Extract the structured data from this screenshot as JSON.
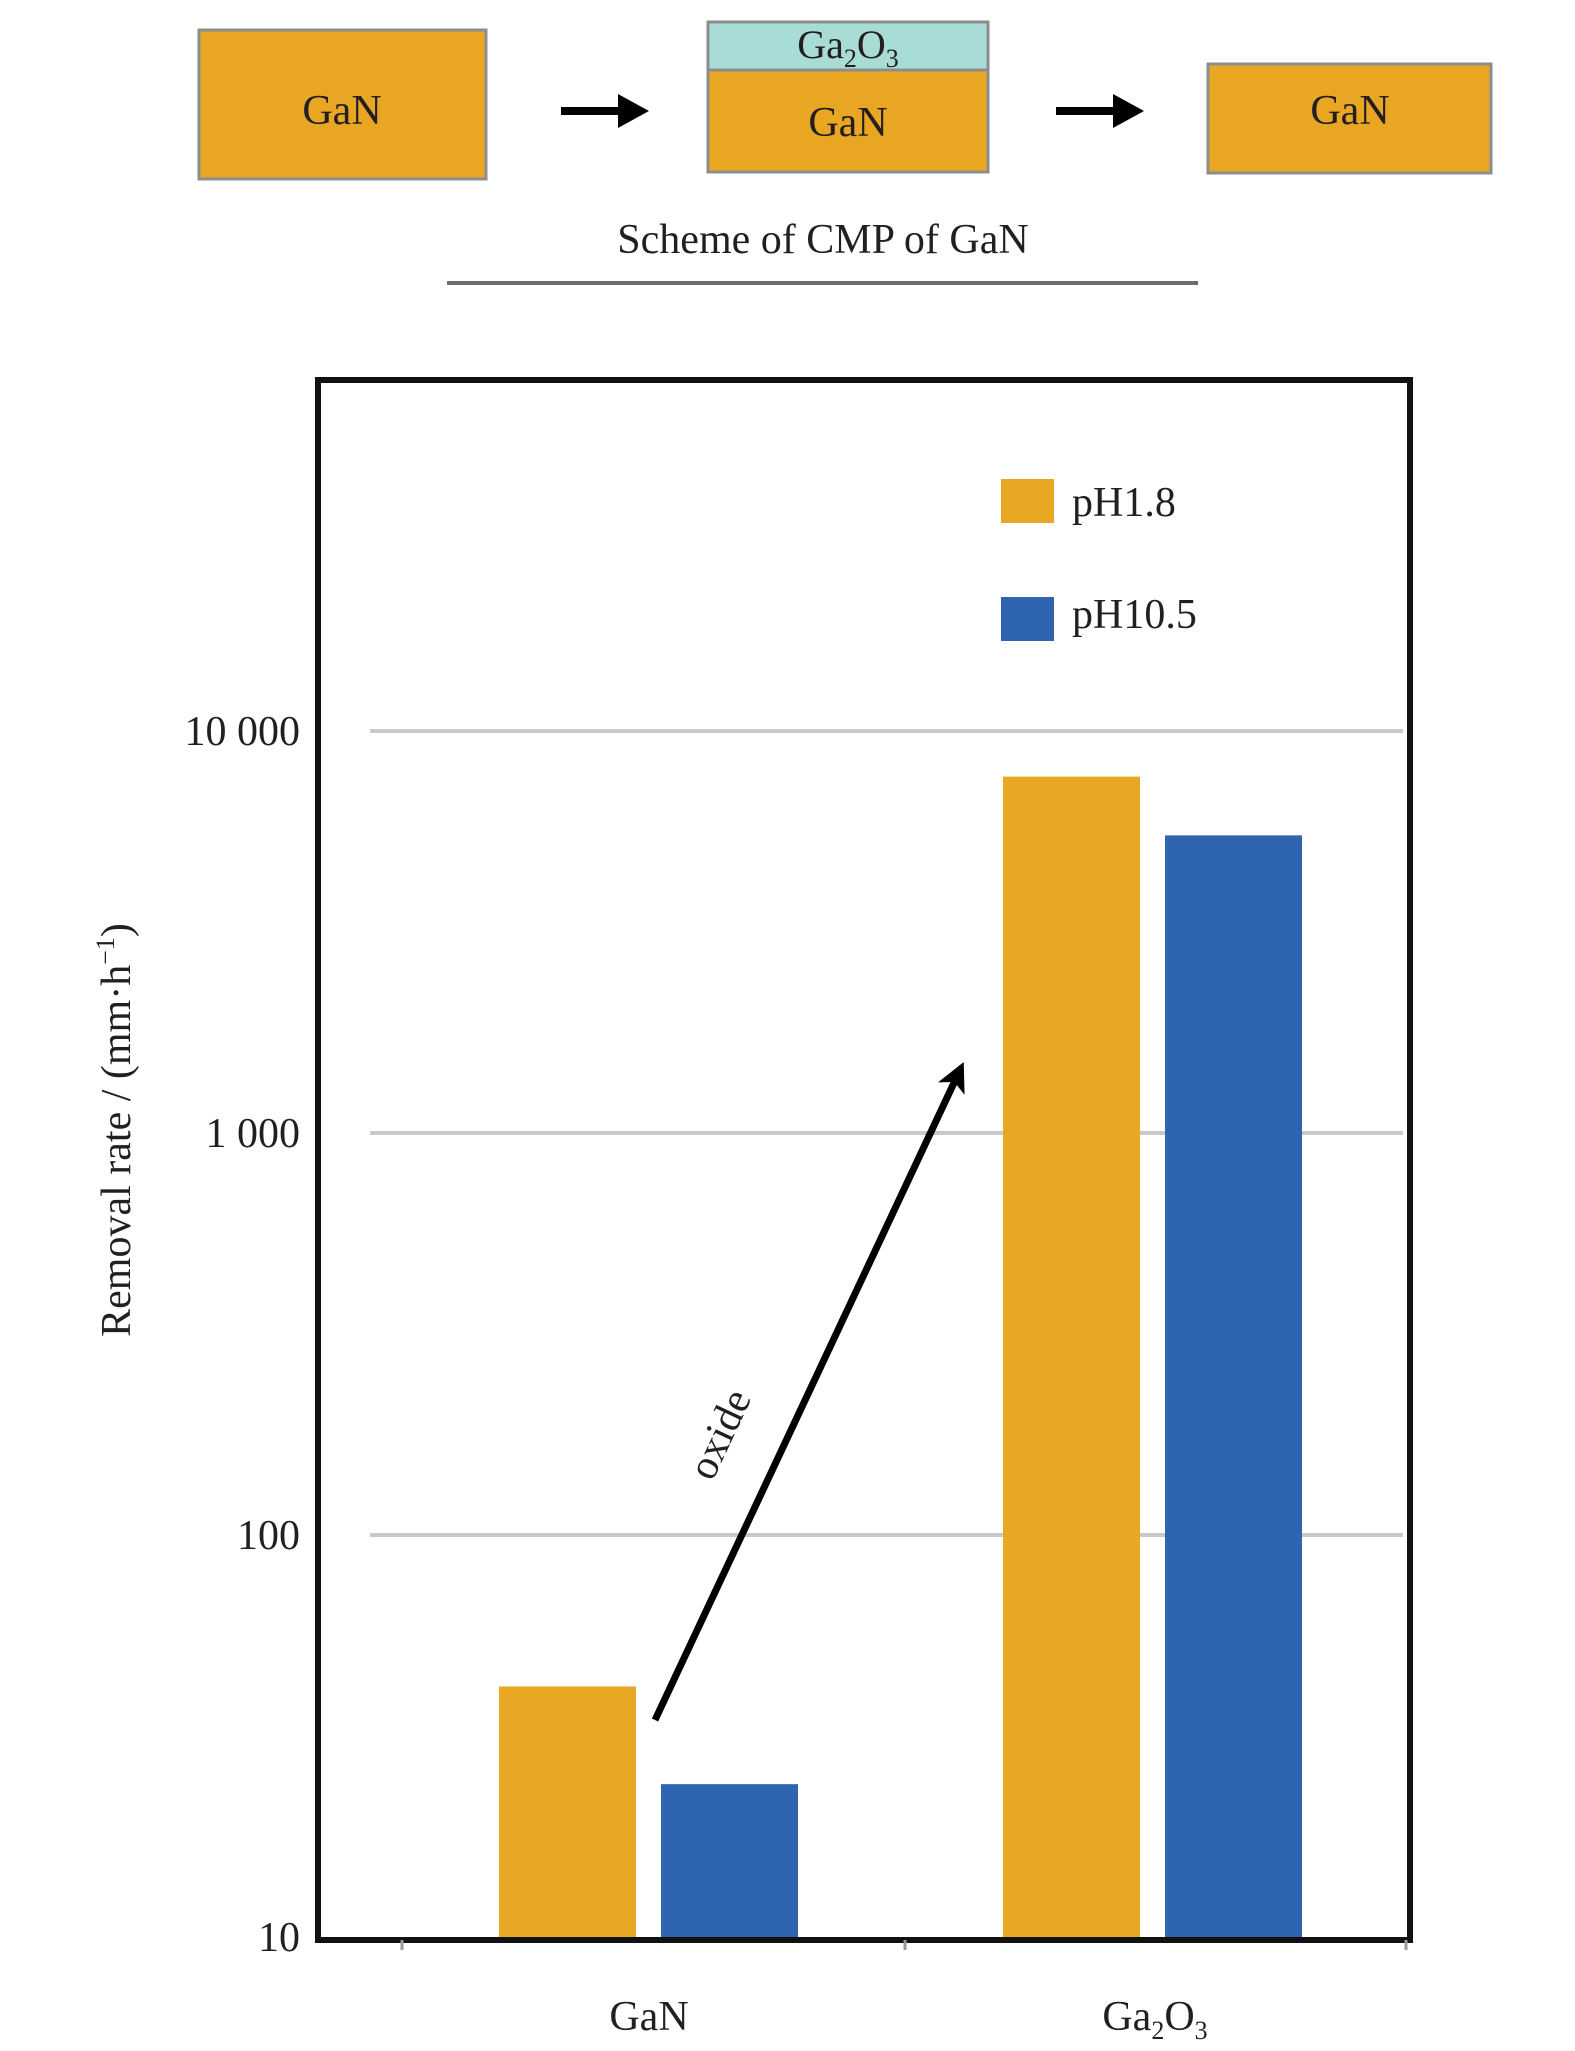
{
  "scheme": {
    "caption": "Scheme of CMP of GaN",
    "blocks": [
      {
        "label": "GaN"
      },
      {
        "label": "GaN",
        "oxide_layer": {
          "base": "Ga",
          "sub1": "2",
          "mid": "O",
          "sub2": "3"
        }
      },
      {
        "label": "GaN"
      }
    ],
    "colors": {
      "gan": "#e8a623",
      "oxide": "#a8dcd6",
      "arrow": "#000000"
    }
  },
  "chart_data": {
    "type": "bar",
    "categories": [
      "GaN",
      "Ga2O3"
    ],
    "category_labels": [
      {
        "base": "GaN",
        "sub1": "",
        "mid": "",
        "sub2": ""
      },
      {
        "base": "Ga",
        "sub1": "2",
        "mid": "O",
        "sub2": "3"
      }
    ],
    "series": [
      {
        "name": "pH1.8",
        "values": [
          42,
          7700
        ],
        "color": "#e8a823"
      },
      {
        "name": "pH10.5",
        "values": [
          24,
          5500
        ],
        "color": "#2f64b1"
      }
    ],
    "ylabel": "Removal rate / (mm·h",
    "ylabel_sup": "−1",
    "ylabel_close": ")",
    "yscale": "log",
    "ylim": [
      10,
      100000
    ],
    "yticks": [
      10,
      100,
      1000,
      10000
    ],
    "ytick_labels": [
      "10",
      "100",
      "1 000",
      "10 000"
    ],
    "grid": "horizontal",
    "legend": "top-right",
    "annotation": {
      "text": "oxide",
      "from": "GaN pH1.8 bar",
      "to": "Ga2O3 bars"
    }
  }
}
